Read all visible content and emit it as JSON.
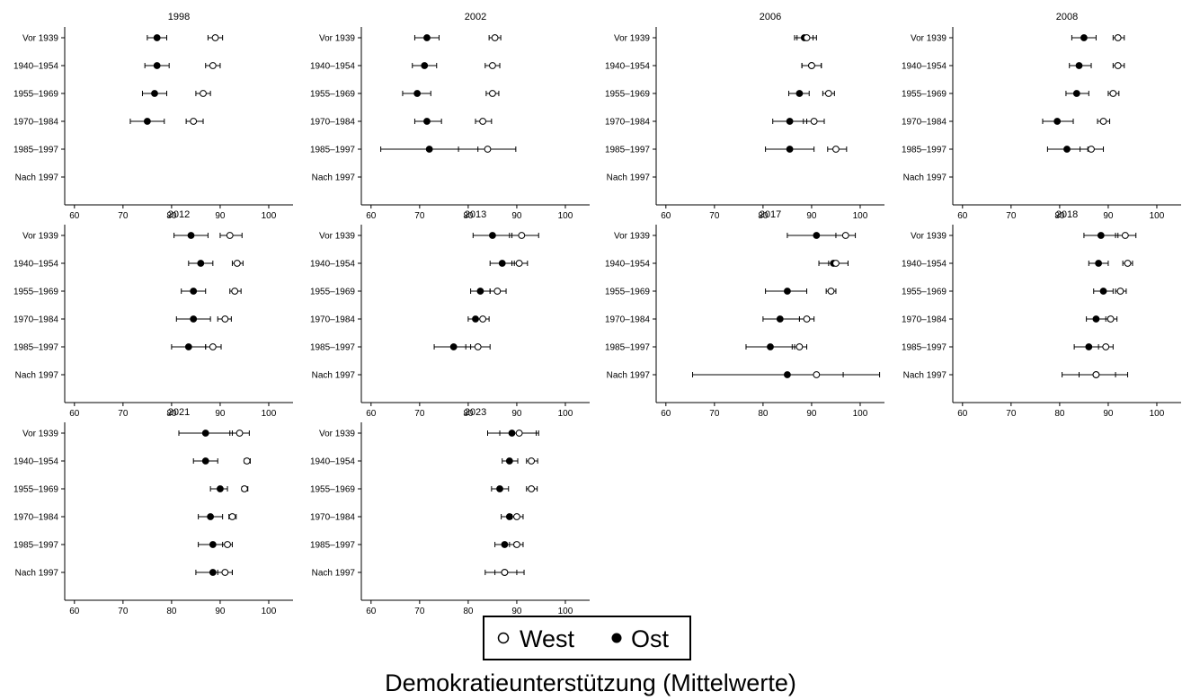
{
  "chart_data": {
    "type": "scatter",
    "subtype": "dot-plot-with-confidence-intervals",
    "xlabel": "Demokratieunterstützung (Mittelwerte)",
    "categories": [
      "Vor 1939",
      "1940–1954",
      "1955–1969",
      "1970–1984",
      "1985–1997",
      "Nach 1997"
    ],
    "x_ticks": [
      "60",
      "70",
      "80",
      "90",
      "100"
    ],
    "xlim": [
      58,
      105
    ],
    "legend": {
      "placement": "bottom-center",
      "entries": [
        {
          "name": "West",
          "marker": "hollow-circle"
        },
        {
          "name": "Ost",
          "marker": "filled-circle"
        }
      ]
    },
    "colors": {
      "marker": "#000000",
      "axis": "#000000",
      "background": "#ffffff"
    },
    "panels": [
      {
        "year": "1998",
        "west": [
          [
            89,
            87.5,
            90.5
          ],
          [
            88.5,
            87,
            90
          ],
          [
            86.5,
            85,
            88
          ],
          [
            84.5,
            83,
            86.5
          ],
          null,
          null
        ],
        "ost": [
          [
            77,
            75,
            79
          ],
          [
            77,
            74.5,
            79.5
          ],
          [
            76.5,
            74,
            79
          ],
          [
            75,
            71.5,
            78.5
          ],
          null,
          null
        ]
      },
      {
        "year": "2002",
        "west": [
          [
            85.5,
            84.3,
            86.7
          ],
          [
            85,
            83.5,
            86.5
          ],
          [
            85,
            83.7,
            86.3
          ],
          [
            83,
            81.5,
            84.8
          ],
          [
            84,
            78,
            89.8
          ],
          null
        ],
        "ost": [
          [
            71.5,
            69,
            74
          ],
          [
            71,
            68.5,
            73.5
          ],
          [
            69.5,
            66.5,
            72.3
          ],
          [
            71.5,
            69,
            74.5
          ],
          [
            72,
            62,
            82
          ],
          null
        ]
      },
      {
        "year": "2006",
        "west": [
          [
            89,
            87,
            91
          ],
          [
            90,
            88,
            92
          ],
          [
            93.5,
            92.3,
            94.7
          ],
          [
            90.5,
            88.3,
            92.6
          ],
          [
            95,
            93.3,
            97.2
          ],
          null
        ],
        "ost": [
          [
            88.5,
            86.5,
            90.3
          ],
          [
            90,
            88,
            92
          ],
          [
            87.5,
            85.3,
            89.5
          ],
          [
            85.5,
            82,
            89
          ],
          [
            85.5,
            80.5,
            90.5
          ],
          null
        ]
      },
      {
        "year": "2008",
        "west": [
          [
            92,
            91,
            93.3
          ],
          [
            92,
            91,
            93.3
          ],
          [
            91,
            90,
            92.2
          ],
          [
            89,
            87.8,
            90.3
          ],
          [
            86.5,
            84.2,
            89
          ],
          null
        ],
        "ost": [
          [
            85,
            82.5,
            87.5
          ],
          [
            84,
            82,
            86.5
          ],
          [
            83.5,
            81.3,
            86
          ],
          [
            79.5,
            76.5,
            82.8
          ],
          [
            81.5,
            77.5,
            85.8
          ],
          null
        ]
      },
      {
        "year": "2012",
        "west": [
          [
            92,
            90,
            94.5
          ],
          [
            93.5,
            92.5,
            94.7
          ],
          [
            93,
            92,
            94.3
          ],
          [
            91,
            89.5,
            92.3
          ],
          [
            88.5,
            87,
            90.2
          ],
          null
        ],
        "ost": [
          [
            84,
            80.5,
            87.5
          ],
          [
            86,
            83.5,
            88.5
          ],
          [
            84.5,
            82,
            87
          ],
          [
            84.5,
            81,
            88
          ],
          [
            83.5,
            80,
            87
          ],
          null
        ]
      },
      {
        "year": "2013",
        "west": [
          [
            91,
            88.5,
            94.5
          ],
          [
            90.5,
            89,
            92.2
          ],
          [
            86,
            84.5,
            87.8
          ],
          [
            83,
            81.7,
            84.3
          ],
          [
            82,
            79.5,
            84.5
          ],
          null
        ],
        "ost": [
          [
            85,
            81,
            89
          ],
          [
            87,
            84.5,
            89.5
          ],
          [
            82.5,
            80.5,
            84.5
          ],
          [
            81.5,
            80,
            83
          ],
          [
            77,
            73,
            80.5
          ],
          null
        ]
      },
      {
        "year": "2017",
        "west": [
          [
            97,
            95,
            99
          ],
          [
            95,
            93.5,
            97.5
          ],
          [
            94,
            93,
            95
          ],
          [
            89,
            87.5,
            90.5
          ],
          [
            87.5,
            86,
            89
          ],
          [
            91,
            85,
            96.5
          ]
        ],
        "ost": [
          [
            91,
            85,
            97
          ],
          [
            94.5,
            91.5,
            97.5
          ],
          [
            85,
            80.5,
            89
          ],
          [
            83.5,
            80,
            87.5
          ],
          [
            81.5,
            76.5,
            86.5
          ],
          [
            85,
            65.5,
            104
          ]
        ]
      },
      {
        "year": "2018",
        "west": [
          [
            93.5,
            91.5,
            95.7
          ],
          [
            94,
            93,
            95
          ],
          [
            92.5,
            91.5,
            93.7
          ],
          [
            90.5,
            89.5,
            91.8
          ],
          [
            89.5,
            88,
            91
          ],
          [
            87.5,
            84,
            91.5
          ]
        ],
        "ost": [
          [
            88.5,
            85,
            92
          ],
          [
            88,
            86,
            90
          ],
          [
            89,
            87,
            91
          ],
          [
            87.5,
            85.5,
            90
          ],
          [
            86,
            83,
            89.5
          ],
          [
            87.5,
            80.5,
            94
          ]
        ]
      },
      {
        "year": "2021",
        "west": [
          [
            94,
            92,
            96
          ],
          [
            95.5,
            95,
            96.2
          ],
          [
            95,
            94.5,
            95.7
          ],
          [
            92.5,
            91.8,
            93.3
          ],
          [
            91.5,
            90.5,
            92.5
          ],
          [
            91,
            89.5,
            92.5
          ]
        ],
        "ost": [
          [
            87,
            81.5,
            92.5
          ],
          [
            87,
            84.5,
            89.5
          ],
          [
            90,
            88,
            91.5
          ],
          [
            88,
            85.5,
            90.5
          ],
          [
            88.5,
            85.5,
            91.5
          ],
          [
            88.5,
            85,
            92.5
          ]
        ]
      },
      {
        "year": "2023",
        "west": [
          [
            90.5,
            86.5,
            94.5
          ],
          [
            93,
            92,
            94.3
          ],
          [
            93,
            92,
            94.2
          ],
          [
            90,
            89,
            91.3
          ],
          [
            90,
            88.5,
            91.3
          ],
          [
            87.5,
            85.5,
            90
          ]
        ],
        "ost": [
          [
            89,
            84,
            94
          ],
          [
            88.5,
            87,
            90.2
          ],
          [
            86.5,
            84.8,
            88.3
          ],
          [
            88.5,
            86.8,
            90.2
          ],
          [
            87.5,
            85.5,
            89.5
          ],
          [
            87.5,
            83.5,
            91.5
          ]
        ]
      }
    ]
  }
}
